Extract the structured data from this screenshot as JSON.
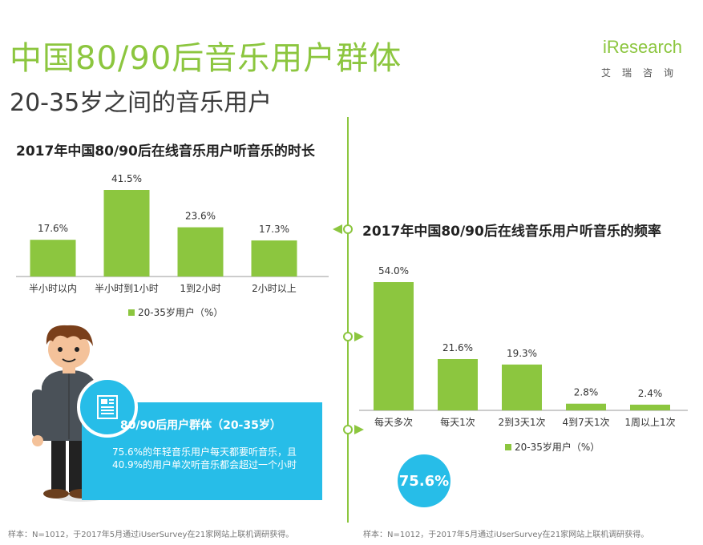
{
  "header": {
    "title": "中国80/90后音乐用户群体",
    "subtitle": "20-35岁之间的音乐用户",
    "logo": "iResearch",
    "logo_cn": "艾瑞咨询"
  },
  "callout": {
    "title": "80/90后用户群体（20-35岁）",
    "text": "75.6%的年轻音乐用户每天都要听音乐，且40.9%的用户单次听音乐都会超过一个小时"
  },
  "highlight": "75.6%",
  "footnotes": {
    "left": "样本：N=1012，于2017年5月通过iUserSurvey在21家网站上联机调研获得。",
    "right": "样本：N=1012，于2017年5月通过iUserSurvey在21家网站上联机调研获得。"
  },
  "colors": {
    "accent": "#8cc63f",
    "callout": "#27bde8"
  },
  "chart_data": [
    {
      "type": "bar",
      "title": "2017年中国80/90后在线音乐用户听音乐的时长",
      "categories": [
        "半小时以内",
        "半小时到1小时",
        "1到2小时",
        "2小时以上"
      ],
      "series": [
        {
          "name": "20-35岁用户（%）",
          "values": [
            17.6,
            41.5,
            23.6,
            17.3
          ]
        }
      ],
      "value_labels": [
        "17.6%",
        "41.5%",
        "23.6%",
        "17.3%"
      ],
      "legend": "bottom",
      "grid": false
    },
    {
      "type": "bar",
      "title": "2017年中国80/90后在线音乐用户听音乐的频率",
      "categories": [
        "每天多次",
        "每天1次",
        "2到3天1次",
        "4到7天1次",
        "1周以上1次"
      ],
      "series": [
        {
          "name": "20-35岁用户（%）",
          "values": [
            54.0,
            21.6,
            19.3,
            2.8,
            2.4
          ]
        }
      ],
      "value_labels": [
        "54.0%",
        "21.6%",
        "19.3%",
        "2.8%",
        "2.4%"
      ],
      "legend": "bottom",
      "grid": false
    }
  ]
}
